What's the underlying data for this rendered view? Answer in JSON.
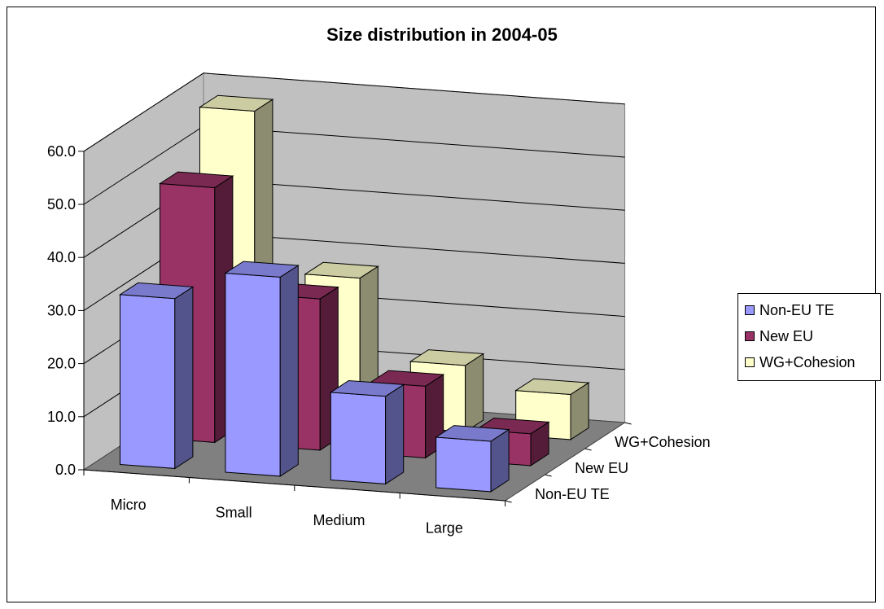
{
  "chart_data": {
    "type": "bar",
    "title": "Size distribution in 2004-05",
    "categories": [
      "Micro",
      "Small",
      "Medium",
      "Large"
    ],
    "series": [
      {
        "name": "Non-EU TE",
        "color": "#9999FF",
        "values": [
          32.0,
          37.5,
          16.5,
          9.5
        ]
      },
      {
        "name": "New EU",
        "color": "#993366",
        "values": [
          48.0,
          28.5,
          13.5,
          6.0
        ]
      },
      {
        "name": "WG+Cohesion",
        "color": "#FFFFCC",
        "values": [
          57.5,
          27.5,
          12.5,
          8.5
        ]
      }
    ],
    "y_ticks": [
      "0.0",
      "10.0",
      "20.0",
      "30.0",
      "40.0",
      "50.0",
      "60.0"
    ],
    "ylim": [
      0,
      60
    ],
    "depth_axis_labels": [
      "Non-EU TE",
      "New EU",
      "WG+Cohesion"
    ],
    "grid": true,
    "legend_position": "right"
  }
}
